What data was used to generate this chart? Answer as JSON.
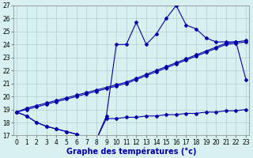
{
  "title": "Graphe des températures (°c)",
  "hours": [
    0,
    1,
    2,
    3,
    4,
    5,
    6,
    7,
    8,
    9,
    10,
    11,
    12,
    13,
    14,
    15,
    16,
    17,
    18,
    19,
    20,
    21,
    22,
    23
  ],
  "temp_actual": [
    18.8,
    18.5,
    18.0,
    17.7,
    17.5,
    17.3,
    17.1,
    16.8,
    16.7,
    18.5,
    24.0,
    24.0,
    25.7,
    24.0,
    24.8,
    26.0,
    27.0,
    25.5,
    25.2,
    24.5,
    24.2,
    24.2,
    24.2,
    21.3
  ],
  "temp_min": [
    18.8,
    18.5,
    18.0,
    17.7,
    17.5,
    17.3,
    17.1,
    16.8,
    16.7,
    18.3,
    18.3,
    18.4,
    18.4,
    18.5,
    18.5,
    18.6,
    18.6,
    18.7,
    18.7,
    18.8,
    18.8,
    18.9,
    18.9,
    19.0
  ],
  "temp_diag1": [
    18.8,
    19.1,
    19.3,
    19.5,
    19.7,
    19.9,
    20.1,
    20.3,
    20.5,
    20.7,
    20.9,
    21.1,
    21.4,
    21.7,
    22.0,
    22.3,
    22.6,
    22.9,
    23.2,
    23.5,
    23.8,
    24.1,
    24.2,
    24.3
  ],
  "temp_diag2": [
    18.8,
    19.0,
    19.2,
    19.4,
    19.6,
    19.8,
    20.0,
    20.2,
    20.4,
    20.6,
    20.8,
    21.0,
    21.3,
    21.6,
    21.9,
    22.2,
    22.5,
    22.8,
    23.1,
    23.4,
    23.7,
    24.0,
    24.1,
    24.2
  ],
  "ylim": [
    17,
    27
  ],
  "yticks": [
    17,
    18,
    19,
    20,
    21,
    22,
    23,
    24,
    25,
    26,
    27
  ],
  "xlim": [
    -0.3,
    23.3
  ],
  "line_color": "#0000aa",
  "bg_color": "#d8f0f0",
  "grid_color": "#b0d0d0",
  "marker": "D",
  "markersize": 2.0,
  "linewidth": 0.8,
  "tick_fontsize": 5.5,
  "xlabel_fontsize": 7.0
}
